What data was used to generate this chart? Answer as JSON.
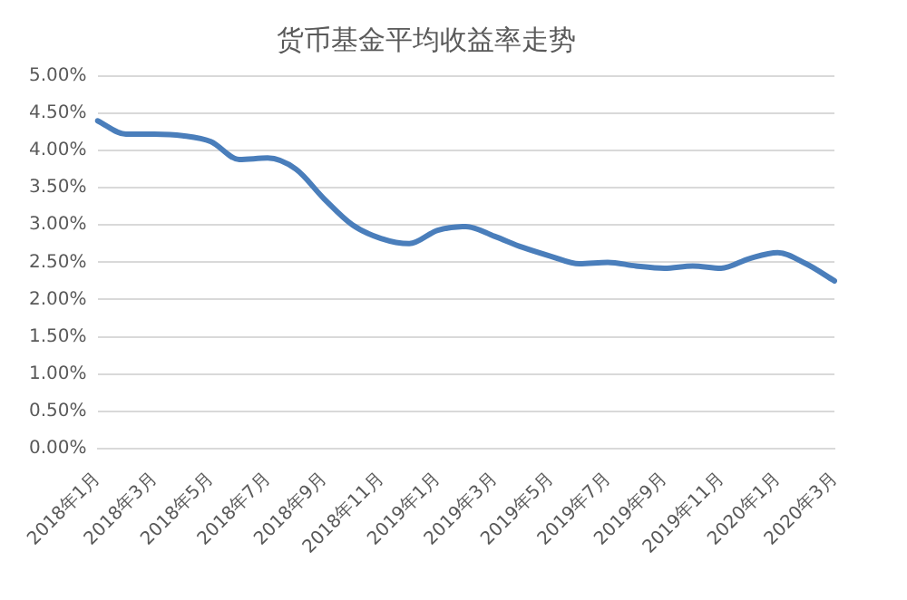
{
  "chart_data": {
    "type": "line",
    "title": "货币基金平均收益率走势",
    "categories": [
      "2018年1月",
      null,
      "2018年3月",
      null,
      "2018年5月",
      null,
      "2018年7月",
      null,
      "2018年9月",
      null,
      "2018年11月",
      null,
      "2019年1月",
      null,
      "2019年3月",
      null,
      "2019年5月",
      null,
      "2019年7月",
      null,
      "2019年9月",
      null,
      "2019年11月",
      null,
      "2020年1月",
      null,
      "2020年3月"
    ],
    "series": [
      {
        "color": "#4a7ebb",
        "values": [
          4.4,
          4.22,
          4.22,
          4.2,
          4.12,
          3.88,
          3.9,
          3.75,
          3.35,
          3.0,
          2.82,
          2.75,
          2.93,
          2.98,
          2.85,
          2.7,
          2.58,
          2.48,
          2.5,
          2.45,
          2.42,
          2.45,
          2.42,
          2.55,
          2.63,
          2.48,
          2.25
        ]
      }
    ],
    "ylim": [
      0,
      5
    ],
    "yticks": [
      {
        "value": 0,
        "label": "0.00%"
      },
      {
        "value": 0.5,
        "label": "0.50%"
      },
      {
        "value": 1,
        "label": "1.00%"
      },
      {
        "value": 1.5,
        "label": "1.50%"
      },
      {
        "value": 2,
        "label": "2.00%"
      },
      {
        "value": 2.5,
        "label": "2.50%"
      },
      {
        "value": 3,
        "label": "3.00%"
      },
      {
        "value": 3.5,
        "label": "3.50%"
      },
      {
        "value": 4,
        "label": "4.00%"
      },
      {
        "value": 4.5,
        "label": "4.50%"
      },
      {
        "value": 5,
        "label": "5.00%"
      }
    ],
    "grid": "y",
    "marker": "none",
    "line_style": "solid"
  }
}
